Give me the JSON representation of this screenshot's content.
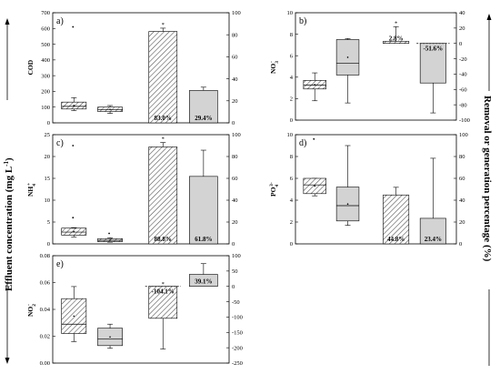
{
  "left_axis_label": "Effluent concentration (mg L",
  "left_axis_sup": "-1",
  "left_axis_close": ")",
  "right_axis_label": "Removal or generation percentage (%)",
  "colors": {
    "box_fill": "#d3d3d3",
    "hatch": "#555555",
    "line": "#000000"
  },
  "chart_data": [
    {
      "type": "box+bar",
      "panel": "a)",
      "ylabel": "COD",
      "ylim": [
        0,
        700
      ],
      "yticks": [
        "0",
        "100",
        "200",
        "300",
        "400",
        "500",
        "600",
        "700"
      ],
      "y2lim": [
        0,
        100
      ],
      "y2ticks": [
        "0",
        "20",
        "40",
        "60",
        "80",
        "100"
      ],
      "boxes": [
        {
          "group": 1,
          "style": "hatched",
          "whislo": 78,
          "q1": 88,
          "med": 105,
          "q3": 132,
          "whishi": 160,
          "outliers": [
            610
          ]
        },
        {
          "group": 2,
          "style": "hatched",
          "whislo": 60,
          "q1": 72,
          "med": 85,
          "q3": 100,
          "whishi": 110,
          "outliers": []
        }
      ],
      "bars": [
        {
          "group": 3,
          "style": "hatched",
          "value": 83.0,
          "err": 3,
          "label": "83.0%",
          "star": true
        },
        {
          "group": 4,
          "style": "gray",
          "value": 29.4,
          "err": 3,
          "label": "29.4%"
        }
      ]
    },
    {
      "type": "box+bar",
      "panel": "b)",
      "ylabel": "NO3",
      "ylim": [
        0,
        10
      ],
      "yticks": [
        "0",
        "2",
        "4",
        "6",
        "8",
        "10"
      ],
      "y2lim": [
        -100,
        40
      ],
      "y2ticks": [
        "-100",
        "-80",
        "-60",
        "-40",
        "-20",
        "0",
        "20",
        "40"
      ],
      "boxes": [
        {
          "group": 1,
          "style": "hatched",
          "whislo": 1.8,
          "q1": 2.9,
          "med": 3.25,
          "q3": 3.7,
          "whishi": 4.4,
          "outliers": []
        },
        {
          "group": 2,
          "style": "gray",
          "whislo": 1.6,
          "q1": 4.2,
          "med": 5.3,
          "q3": 7.5,
          "whishi": 7.6,
          "outliers": []
        }
      ],
      "bars": [
        {
          "group": 3,
          "style": "hatched",
          "value": 2.8,
          "err": 19,
          "label": "2.8%",
          "star": true
        },
        {
          "group": 4,
          "style": "gray",
          "value": -51.6,
          "err": 39,
          "label": "-51.6%",
          "dashed_zero": true
        }
      ]
    },
    {
      "type": "box+bar",
      "panel": "c)",
      "ylabel": "NH4",
      "ylim": [
        0,
        25
      ],
      "yticks": [
        "0",
        "5",
        "10",
        "15",
        "20",
        "25"
      ],
      "y2lim": [
        0,
        100
      ],
      "y2ticks": [
        "0",
        "20",
        "40",
        "60",
        "80",
        "100"
      ],
      "boxes": [
        {
          "group": 1,
          "style": "hatched",
          "whislo": 1.6,
          "q1": 2.0,
          "med": 2.7,
          "q3": 3.6,
          "whishi": 3.7,
          "outliers": [
            6.0,
            22.5
          ]
        },
        {
          "group": 2,
          "style": "hatched",
          "whislo": 0.4,
          "q1": 0.5,
          "med": 0.8,
          "q3": 1.2,
          "whishi": 1.4,
          "outliers": [
            2.4
          ]
        }
      ],
      "bars": [
        {
          "group": 3,
          "style": "hatched",
          "value": 88.8,
          "err": 4,
          "label": "88.8%",
          "star": true
        },
        {
          "group": 4,
          "style": "gray",
          "value": 61.8,
          "err": 24,
          "label": "61.8%"
        }
      ]
    },
    {
      "type": "box+bar",
      "panel": "d)",
      "ylabel": "PO4",
      "ylim": [
        0,
        10
      ],
      "yticks": [
        "0",
        "2",
        "4",
        "6",
        "8",
        "10"
      ],
      "y2lim": [
        0,
        100
      ],
      "y2ticks": [
        "0",
        "20",
        "40",
        "60",
        "80",
        "100"
      ],
      "boxes": [
        {
          "group": 1,
          "style": "hatched",
          "whislo": 4.4,
          "q1": 4.6,
          "med": 5.4,
          "q3": 6.0,
          "whishi": 6.0,
          "outliers": [
            9.6
          ]
        },
        {
          "group": 2,
          "style": "gray",
          "whislo": 1.7,
          "q1": 2.1,
          "med": 3.5,
          "q3": 5.2,
          "whishi": 9.0,
          "outliers": []
        }
      ],
      "bars": [
        {
          "group": 3,
          "style": "hatched",
          "value": 44.8,
          "err": 7,
          "label": "44.8%",
          "dashed_top": true
        },
        {
          "group": 4,
          "style": "gray",
          "value": 23.4,
          "err": 55,
          "label": "23.4%"
        }
      ]
    },
    {
      "type": "box+bar",
      "panel": "e)",
      "ylabel": "NO2",
      "ylim": [
        0,
        0.08
      ],
      "yticks": [
        "0.00",
        "0.02",
        "0.04",
        "0.06",
        "0.08"
      ],
      "y2lim": [
        -250,
        100
      ],
      "y2ticks": [
        "-250",
        "-200",
        "-150",
        "-100",
        "-50",
        "0",
        "50",
        "100"
      ],
      "boxes": [
        {
          "group": 1,
          "style": "hatched",
          "whislo": 0.016,
          "q1": 0.022,
          "med": 0.029,
          "q3": 0.048,
          "whishi": 0.057,
          "outliers": []
        },
        {
          "group": 2,
          "style": "gray",
          "whislo": 0.011,
          "q1": 0.013,
          "med": 0.018,
          "q3": 0.026,
          "whishi": 0.029,
          "outliers": []
        }
      ],
      "bars": [
        {
          "group": 3,
          "style": "hatched",
          "value": -104.1,
          "err": 100,
          "label": "-104.1%",
          "star": true,
          "dashed_zero": true
        },
        {
          "group": 4,
          "style": "gray",
          "value": 39.1,
          "err": 35,
          "label": "39.1%"
        }
      ]
    }
  ]
}
